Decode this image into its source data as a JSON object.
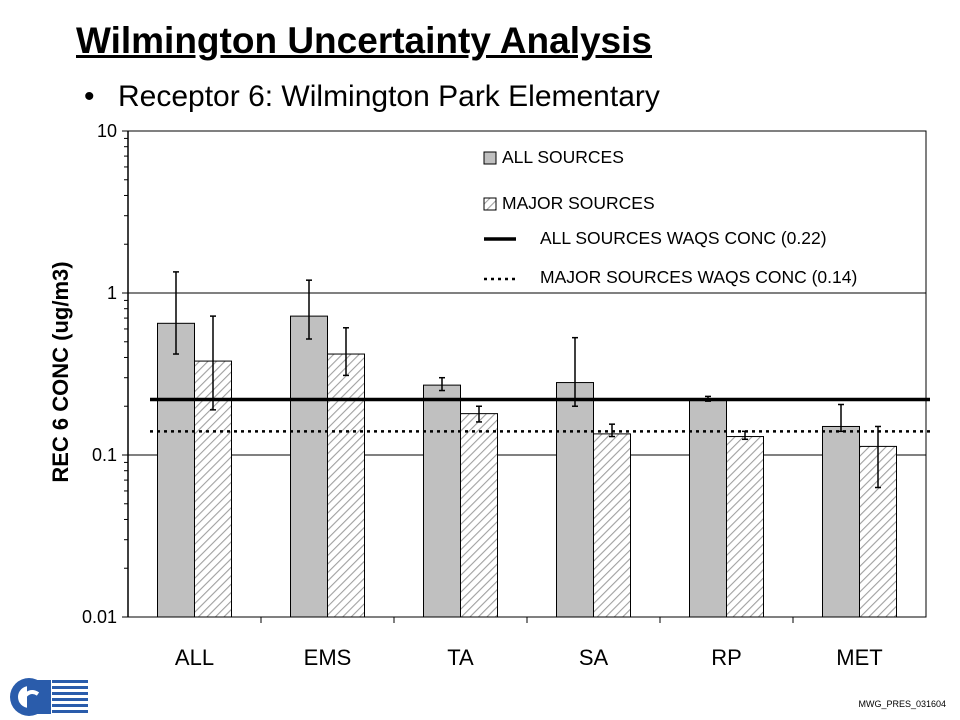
{
  "slide": {
    "title": "Wilmington Uncertainty Analysis",
    "bullet": "Receptor 6:  Wilmington Park Elementary",
    "footer_code": "MWG_PRES_031604"
  },
  "colors": {
    "all_sources_bar": "#c0c0c0",
    "major_sources_hatch": "#a0a0a0",
    "gridline": "#000000",
    "reference_line": "#000000"
  },
  "chart_data": {
    "type": "bar",
    "y_scale": "log",
    "ylim": [
      0.01,
      10
    ],
    "ylabel": "REC 6 CONC (ug/m3)",
    "xlabel": "",
    "yticks": [
      "0.01",
      "0.1",
      "1",
      "10"
    ],
    "gridlines": "major y",
    "legend_position": "top-right",
    "categories": [
      "ALL",
      "EMS",
      "TA",
      "SA",
      "RP",
      "MET"
    ],
    "series": [
      {
        "name": "ALL SOURCES",
        "fill": "solid-gray",
        "values": [
          0.65,
          0.72,
          0.27,
          0.28,
          0.22,
          0.15
        ],
        "error_low": [
          0.42,
          0.52,
          0.25,
          0.2,
          0.215,
          0.14
        ],
        "error_high": [
          1.35,
          1.2,
          0.3,
          0.53,
          0.23,
          0.205
        ]
      },
      {
        "name": "MAJOR SOURCES",
        "fill": "hatched",
        "values": [
          0.38,
          0.42,
          0.18,
          0.135,
          0.13,
          0.113
        ],
        "error_low": [
          0.19,
          0.31,
          0.16,
          0.13,
          0.125,
          0.063
        ],
        "error_high": [
          0.72,
          0.61,
          0.2,
          0.155,
          0.14,
          0.15
        ]
      }
    ],
    "reference_lines": [
      {
        "name": "ALL SOURCES WAQS CONC (0.22)",
        "value": 0.22,
        "style": "solid"
      },
      {
        "name": "MAJOR SOURCES WAQS CONC (0.14)",
        "value": 0.14,
        "style": "dotted"
      }
    ]
  }
}
